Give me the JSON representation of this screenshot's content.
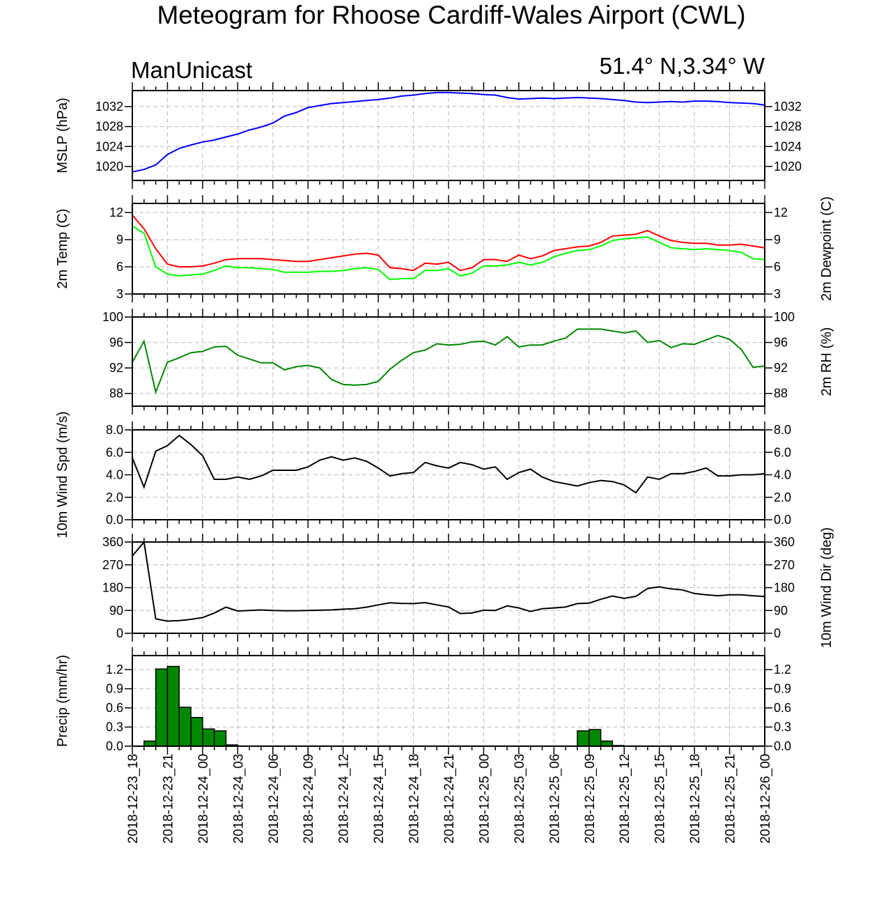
{
  "title": "Meteogram for Rhoose Cardiff-Wales Airport (CWL)",
  "model_label": "ManUnicast",
  "location_label": "51.4° N,3.34° W",
  "colors": {
    "mslp": "#0000ff",
    "temp": "#ff0000",
    "dewpoint": "#00ff00",
    "rh": "#008800",
    "wind": "#000000",
    "precip_fill": "#008800",
    "grid": "#bbbbbb"
  },
  "chart_data": [
    {
      "type": "line",
      "title": "",
      "ylabel": "MSLP (hPa)",
      "ylim": [
        1017.2,
        1035.2
      ],
      "yticks": [
        1020,
        1024,
        1028,
        1032
      ],
      "ytick_labels": [
        "1020",
        "1024",
        "1028",
        "1032"
      ],
      "right_ytick_labels": [
        "1020",
        "1024",
        "1028",
        "1032"
      ],
      "grid": true,
      "series": [
        {
          "name": "",
          "color": "#0000ff",
          "x": [
            0,
            1,
            2,
            3,
            4,
            5,
            6,
            7,
            8,
            9,
            10,
            11,
            12,
            13,
            14,
            15,
            16,
            17,
            18,
            19,
            20,
            21,
            22,
            23,
            24,
            25,
            26,
            27,
            28,
            29,
            30,
            31,
            32,
            33,
            34,
            35,
            36,
            37,
            38,
            39,
            40,
            41,
            42,
            43,
            44,
            45,
            46,
            47,
            48,
            49,
            50,
            51,
            52,
            53,
            54
          ],
          "values": [
            1018.9,
            1019.4,
            1020.3,
            1022.4,
            1023.6,
            1024.3,
            1024.9,
            1025.3,
            1025.9,
            1026.5,
            1027.3,
            1027.9,
            1028.7,
            1030.1,
            1030.8,
            1031.8,
            1032.2,
            1032.6,
            1032.8,
            1033.0,
            1033.2,
            1033.4,
            1033.7,
            1034.1,
            1034.3,
            1034.6,
            1034.8,
            1034.8,
            1034.7,
            1034.6,
            1034.4,
            1034.3,
            1033.8,
            1033.5,
            1033.6,
            1033.7,
            1033.6,
            1033.7,
            1033.8,
            1033.7,
            1033.6,
            1033.4,
            1033.2,
            1032.9,
            1032.8,
            1032.9,
            1033.0,
            1032.9,
            1033.1,
            1033.1,
            1033.0,
            1032.8,
            1032.7,
            1032.6,
            1032.3
          ]
        }
      ]
    },
    {
      "type": "line",
      "title": "",
      "ylabel": "2m Temp (C)",
      "right_ylabel": "2m Dewpoint (C)",
      "ylim": [
        3,
        13
      ],
      "yticks": [
        3,
        6,
        9,
        12
      ],
      "ytick_labels": [
        "3",
        "6",
        "9",
        "12"
      ],
      "right_ytick_labels": [
        "3",
        "6",
        "9",
        "12"
      ],
      "grid": true,
      "series": [
        {
          "name": "",
          "color": "#ff0000",
          "x": [
            0,
            1,
            2,
            3,
            4,
            5,
            6,
            7,
            8,
            9,
            10,
            11,
            12,
            13,
            14,
            15,
            16,
            17,
            18,
            19,
            20,
            21,
            22,
            23,
            24,
            25,
            26,
            27,
            28,
            29,
            30,
            31,
            32,
            33,
            34,
            35,
            36,
            37,
            38,
            39,
            40,
            41,
            42,
            43,
            44,
            45,
            46,
            47,
            48,
            49,
            50,
            51,
            52,
            53,
            54
          ],
          "values": [
            11.7,
            10.2,
            8.0,
            6.3,
            6.0,
            6.0,
            6.1,
            6.4,
            6.8,
            6.9,
            6.9,
            6.9,
            6.8,
            6.7,
            6.6,
            6.6,
            6.8,
            7.0,
            7.2,
            7.4,
            7.5,
            7.3,
            5.9,
            5.8,
            5.6,
            6.4,
            6.3,
            6.5,
            5.6,
            5.9,
            6.8,
            6.8,
            6.6,
            7.3,
            6.9,
            7.2,
            7.8,
            8.0,
            8.2,
            8.3,
            8.7,
            9.4,
            9.5,
            9.6,
            10.0,
            9.4,
            8.9,
            8.7,
            8.6,
            8.6,
            8.4,
            8.4,
            8.5,
            8.3,
            8.1
          ]
        },
        {
          "name": "",
          "color": "#00ff00",
          "x": [
            0,
            1,
            2,
            3,
            4,
            5,
            6,
            7,
            8,
            9,
            10,
            11,
            12,
            13,
            14,
            15,
            16,
            17,
            18,
            19,
            20,
            21,
            22,
            23,
            24,
            25,
            26,
            27,
            28,
            29,
            30,
            31,
            32,
            33,
            34,
            35,
            36,
            37,
            38,
            39,
            40,
            41,
            42,
            43,
            44,
            45,
            46,
            47,
            48,
            49,
            50,
            51,
            52,
            53,
            54
          ],
          "values": [
            10.5,
            9.7,
            6.0,
            5.2,
            5.0,
            5.1,
            5.2,
            5.6,
            6.1,
            5.9,
            5.9,
            5.8,
            5.7,
            5.4,
            5.4,
            5.4,
            5.5,
            5.5,
            5.6,
            5.8,
            5.9,
            5.7,
            4.6,
            4.7,
            4.7,
            5.6,
            5.6,
            5.8,
            5.0,
            5.3,
            6.1,
            6.1,
            6.2,
            6.5,
            6.2,
            6.5,
            7.1,
            7.5,
            7.8,
            7.9,
            8.3,
            8.9,
            9.1,
            9.2,
            9.3,
            8.7,
            8.1,
            8.0,
            7.9,
            8.0,
            7.9,
            7.8,
            7.6,
            6.9,
            6.8
          ]
        }
      ]
    },
    {
      "type": "line",
      "title": "",
      "ylabel": "",
      "right_ylabel": "2m RH (%)",
      "ylim": [
        86,
        100
      ],
      "yticks": [
        88,
        92,
        96,
        100
      ],
      "ytick_labels": [
        "88",
        "92",
        "96",
        "100"
      ],
      "right_ytick_labels": [
        "88",
        "92",
        "96",
        "100"
      ],
      "grid": true,
      "series": [
        {
          "name": "",
          "color": "#008800",
          "x": [
            0,
            1,
            2,
            3,
            4,
            5,
            6,
            7,
            8,
            9,
            10,
            11,
            12,
            13,
            14,
            15,
            16,
            17,
            18,
            19,
            20,
            21,
            22,
            23,
            24,
            25,
            26,
            27,
            28,
            29,
            30,
            31,
            32,
            33,
            34,
            35,
            36,
            37,
            38,
            39,
            40,
            41,
            42,
            43,
            44,
            45,
            46,
            47,
            48,
            49,
            50,
            51,
            52,
            53,
            54
          ],
          "values": [
            92.9,
            96.2,
            88.2,
            92.9,
            93.6,
            94.4,
            94.6,
            95.3,
            95.4,
            94.0,
            93.4,
            92.8,
            92.8,
            91.7,
            92.2,
            92.4,
            92.0,
            90.2,
            89.4,
            89.3,
            89.4,
            89.9,
            91.8,
            93.2,
            94.4,
            94.8,
            95.8,
            95.6,
            95.7,
            96.1,
            96.2,
            95.6,
            96.9,
            95.3,
            95.6,
            95.6,
            96.2,
            96.7,
            98.1,
            98.1,
            98.1,
            97.8,
            97.5,
            97.8,
            96.0,
            96.3,
            95.2,
            95.8,
            95.7,
            96.4,
            97.1,
            96.5,
            94.9,
            92.1,
            92.3
          ]
        }
      ]
    },
    {
      "type": "line",
      "title": "",
      "ylabel": "10m Wind Spd (m/s)",
      "ylim": [
        0,
        8
      ],
      "yticks": [
        0,
        2,
        4,
        6,
        8
      ],
      "ytick_labels": [
        "0.0",
        "2.0",
        "4.0",
        "6.0",
        "8.0"
      ],
      "right_ytick_labels": [
        "0.0",
        "2.0",
        "4.0",
        "6.0",
        "8.0"
      ],
      "grid": true,
      "series": [
        {
          "name": "",
          "color": "#000000",
          "x": [
            0,
            1,
            2,
            3,
            4,
            5,
            6,
            7,
            8,
            9,
            10,
            11,
            12,
            13,
            14,
            15,
            16,
            17,
            18,
            19,
            20,
            21,
            22,
            23,
            24,
            25,
            26,
            27,
            28,
            29,
            30,
            31,
            32,
            33,
            34,
            35,
            36,
            37,
            38,
            39,
            40,
            41,
            42,
            43,
            44,
            45,
            46,
            47,
            48,
            49,
            50,
            51,
            52,
            53,
            54
          ],
          "values": [
            5.5,
            2.9,
            6.1,
            6.6,
            7.5,
            6.7,
            5.7,
            3.6,
            3.6,
            3.8,
            3.6,
            3.9,
            4.4,
            4.4,
            4.4,
            4.7,
            5.3,
            5.6,
            5.3,
            5.5,
            5.2,
            4.6,
            3.9,
            4.1,
            4.2,
            5.1,
            4.8,
            4.6,
            5.1,
            4.9,
            4.5,
            4.7,
            3.6,
            4.2,
            4.5,
            3.8,
            3.4,
            3.2,
            3.0,
            3.3,
            3.5,
            3.4,
            3.1,
            2.4,
            3.8,
            3.6,
            4.1,
            4.1,
            4.3,
            4.6,
            3.9,
            3.9,
            4.0,
            4.0,
            4.1
          ]
        }
      ]
    },
    {
      "type": "line",
      "title": "",
      "ylabel": "",
      "right_ylabel": "10m Wind Dir (deg)",
      "ylim": [
        0,
        360
      ],
      "yticks": [
        0,
        90,
        180,
        270,
        360
      ],
      "ytick_labels": [
        "0",
        "90",
        "180",
        "270",
        "360"
      ],
      "right_ytick_labels": [
        "0",
        "90",
        "180",
        "270",
        "360"
      ],
      "grid": true,
      "series": [
        {
          "name": "",
          "color": "#000000",
          "x": [
            0,
            1,
            2,
            3,
            4,
            5,
            6,
            7,
            8,
            9,
            10,
            11,
            12,
            13,
            14,
            15,
            16,
            17,
            18,
            19,
            20,
            21,
            22,
            23,
            24,
            25,
            26,
            27,
            28,
            29,
            30,
            31,
            32,
            33,
            34,
            35,
            36,
            37,
            38,
            39,
            40,
            41,
            42,
            43,
            44,
            45,
            46,
            47,
            48,
            49,
            50,
            51,
            52,
            53,
            54
          ],
          "values": [
            305,
            360,
            57,
            48,
            50,
            55,
            62,
            80,
            103,
            88,
            90,
            92,
            90,
            89,
            89,
            90,
            91,
            92,
            95,
            97,
            103,
            112,
            120,
            118,
            117,
            121,
            112,
            104,
            78,
            80,
            91,
            90,
            108,
            100,
            86,
            97,
            100,
            104,
            117,
            119,
            134,
            147,
            138,
            146,
            177,
            183,
            175,
            171,
            157,
            152,
            148,
            152,
            152,
            148,
            145
          ]
        }
      ]
    },
    {
      "type": "bar",
      "title": "",
      "ylabel": "Precip (mm/hr)",
      "ylim": [
        0,
        1.42
      ],
      "yticks": [
        0,
        0.3,
        0.6,
        0.9,
        1.2
      ],
      "ytick_labels": [
        "0.0",
        "0.3",
        "0.6",
        "0.9",
        "1.2"
      ],
      "right_ytick_labels": [
        "0.0",
        "0.3",
        "0.6",
        "0.9",
        "1.2"
      ],
      "grid": true,
      "x": [
        0,
        1,
        2,
        3,
        4,
        5,
        6,
        7,
        8,
        9,
        10,
        11,
        12,
        13,
        14,
        15,
        16,
        17,
        18,
        19,
        20,
        21,
        22,
        23,
        24,
        25,
        26,
        27,
        28,
        29,
        30,
        31,
        32,
        33,
        34,
        35,
        36,
        37,
        38,
        39,
        40,
        41,
        42,
        43,
        44,
        45,
        46,
        47,
        48,
        49,
        50,
        51,
        52,
        53
      ],
      "values": [
        0,
        0.08,
        1.21,
        1.25,
        0.61,
        0.45,
        0.27,
        0.24,
        0.02,
        0,
        0,
        0,
        0,
        0,
        0,
        0,
        0,
        0,
        0,
        0,
        0,
        0,
        0,
        0,
        0,
        0,
        0,
        0,
        0,
        0,
        0,
        0,
        0,
        0,
        0,
        0,
        0,
        0,
        0.24,
        0.26,
        0.08,
        0.01,
        0,
        0,
        0,
        0,
        0,
        0,
        0,
        0,
        0,
        0,
        0,
        0
      ]
    }
  ],
  "x_axis": {
    "tick_labels": [
      "2018-12-23_18",
      "2018-12-23_21",
      "2018-12-24_00",
      "2018-12-24_03",
      "2018-12-24_06",
      "2018-12-24_09",
      "2018-12-24_12",
      "2018-12-24_15",
      "2018-12-24_18",
      "2018-12-24_21",
      "2018-12-25_00",
      "2018-12-25_03",
      "2018-12-25_06",
      "2018-12-25_09",
      "2018-12-25_12",
      "2018-12-25_15",
      "2018-12-25_18",
      "2018-12-25_21",
      "2018-12-26_00"
    ],
    "hours_per_step": 1,
    "label_every_hours": 3
  }
}
